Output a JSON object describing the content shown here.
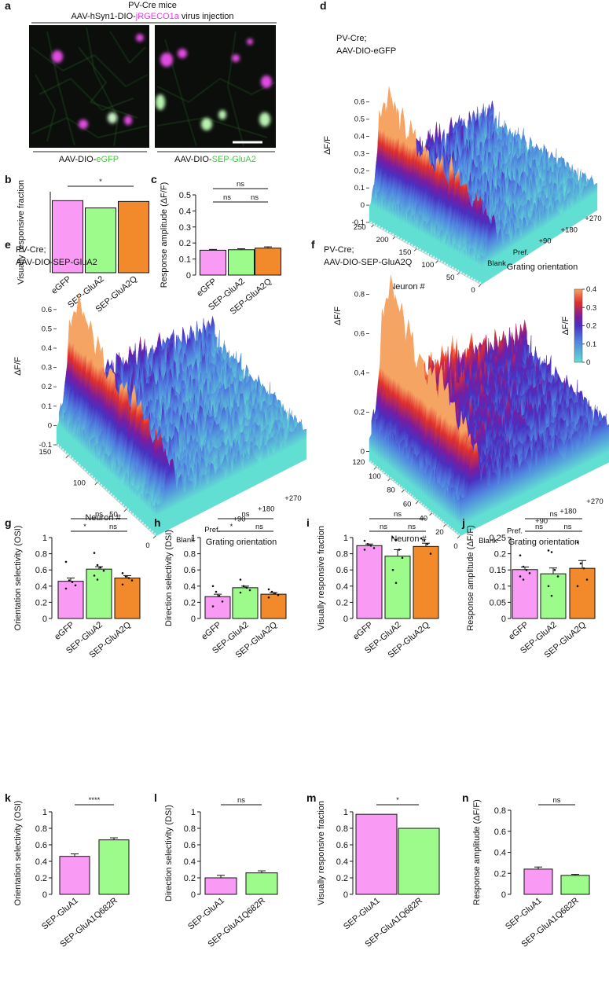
{
  "panel_a": {
    "letter": "a",
    "title": "PV-Cre mice",
    "subtitle": [
      "AAV-hSyn1-DIO-",
      "jRGECO1a",
      " virus injection"
    ],
    "left_label": [
      "AAV-DIO-",
      "eGFP"
    ],
    "right_label": [
      "AAV-DIO-",
      "SEP-GluA2"
    ]
  },
  "chart_data": [
    {
      "type": "bar",
      "panel": "b",
      "ylabel": "Visually responsive fraction",
      "categories": [
        "eGFP",
        "SEP-GluA2",
        "SEP-GluA2Q"
      ],
      "values": [
        0.89,
        0.8,
        0.88
      ],
      "colors": [
        "#f99bf5",
        "#9dfb8c",
        "#f28a2b"
      ],
      "ylim": [
        0,
        1
      ],
      "comparisons": [
        {
          "groups": [
            0,
            2
          ],
          "label": "*"
        }
      ]
    },
    {
      "type": "bar",
      "panel": "c",
      "ylabel": "Response amplitude (ΔF/F)",
      "categories": [
        "eGFP",
        "SEP-GluA2",
        "SEP-GluA2Q"
      ],
      "values": [
        0.155,
        0.158,
        0.168
      ],
      "errors": [
        0.005,
        0.006,
        0.008
      ],
      "colors": [
        "#f99bf5",
        "#9dfb8c",
        "#f28a2b"
      ],
      "ylim": [
        0,
        0.5
      ],
      "yticks": [
        0,
        0.1,
        0.2,
        0.3,
        0.4,
        0.5
      ],
      "comparisons": [
        {
          "groups": [
            0,
            2
          ],
          "label": "ns"
        },
        {
          "groups": [
            0,
            1
          ],
          "label": "ns"
        },
        {
          "groups": [
            1,
            2
          ],
          "label": "ns"
        }
      ]
    },
    {
      "type": "surface3d",
      "panel": "d",
      "title_lines": [
        "PV-Cre;",
        "AAV-DIO-eGFP"
      ],
      "zlabel": "ΔF/F",
      "zlim": [
        -0.1,
        0.6
      ],
      "zticks": [
        -0.1,
        0,
        0.1,
        0.2,
        0.3,
        0.4,
        0.5,
        0.6
      ],
      "ylabel": "Neuron #",
      "ylim": [
        0,
        260
      ],
      "yticks": [
        0,
        50,
        100,
        150,
        200,
        250
      ],
      "xlabel": "Grating orientation",
      "categories": [
        "Blank",
        "Pref.",
        "+90",
        "+180",
        "+270"
      ]
    },
    {
      "type": "surface3d",
      "panel": "e",
      "title_lines": [
        "PV-Cre;",
        "AAV-DIO-SEP-GluA2"
      ],
      "zlabel": "ΔF/F",
      "zlim": [
        -0.1,
        0.6
      ],
      "zticks": [
        -0.1,
        0,
        0.1,
        0.2,
        0.3,
        0.4,
        0.5,
        0.6
      ],
      "ylabel": "Neuron #",
      "ylim": [
        0,
        170
      ],
      "yticks": [
        0,
        50,
        100,
        150
      ],
      "xlabel": "Grating orientation",
      "categories": [
        "Blank",
        "Pref.",
        "+90",
        "+180",
        "+270"
      ]
    },
    {
      "type": "surface3d",
      "panel": "f",
      "title_lines": [
        "PV-Cre;",
        "AAV-DIO-SEP-GluA2Q"
      ],
      "zlabel": "ΔF/F",
      "zlim": [
        -0.05,
        0.8
      ],
      "zticks": [
        0,
        0.2,
        0.4,
        0.6,
        0.8
      ],
      "ylabel": "Neuron #",
      "ylim": [
        0,
        130
      ],
      "yticks": [
        0,
        20,
        40,
        60,
        80,
        100,
        120
      ],
      "xlabel": "Grating orientation",
      "categories": [
        "Blank",
        "Pref.",
        "+90",
        "+180",
        "+270"
      ],
      "colorbar": {
        "label": "ΔF/F",
        "lim": [
          0,
          0.4
        ],
        "ticks": [
          0,
          0.1,
          0.2,
          0.3,
          0.4
        ]
      }
    },
    {
      "type": "bar",
      "panel": "g",
      "ylabel": "Orientation selectivity (OSI)",
      "categories": [
        "eGFP",
        "SEP-GluA2",
        "SEP-GluA2Q"
      ],
      "values": [
        0.46,
        0.61,
        0.5
      ],
      "errors": [
        0.04,
        0.03,
        0.03
      ],
      "points": [
        [
          0.7,
          0.47,
          0.45,
          0.41,
          0.37
        ],
        [
          0.81,
          0.66,
          0.63,
          0.59,
          0.53,
          0.48
        ],
        [
          0.56,
          0.52,
          0.5,
          0.47,
          0.42
        ]
      ],
      "colors": [
        "#f99bf5",
        "#9dfb8c",
        "#f28a2b"
      ],
      "ylim": [
        0,
        1
      ],
      "yticks": [
        0,
        0.2,
        0.4,
        0.6,
        0.8,
        1
      ],
      "comparisons": [
        {
          "groups": [
            0,
            2
          ],
          "label": "ns"
        },
        {
          "groups": [
            0,
            1
          ],
          "label": "*"
        },
        {
          "groups": [
            1,
            2
          ],
          "label": "ns"
        }
      ]
    },
    {
      "type": "bar",
      "panel": "h",
      "ylabel": "Direction selectivity (DSI)",
      "categories": [
        "eGFP",
        "SEP-GluA2",
        "SEP-GluA2Q"
      ],
      "values": [
        0.27,
        0.38,
        0.3
      ],
      "errors": [
        0.03,
        0.02,
        0.02
      ],
      "points": [
        [
          0.4,
          0.33,
          0.28,
          0.21,
          0.15
        ],
        [
          0.48,
          0.4,
          0.38,
          0.35,
          0.32
        ],
        [
          0.36,
          0.33,
          0.31,
          0.29,
          0.26
        ]
      ],
      "colors": [
        "#f99bf5",
        "#9dfb8c",
        "#f28a2b"
      ],
      "ylim": [
        0,
        1
      ],
      "yticks": [
        0,
        0.2,
        0.4,
        0.6,
        0.8,
        1
      ],
      "comparisons": [
        {
          "groups": [
            0,
            2
          ],
          "label": "ns"
        },
        {
          "groups": [
            0,
            1
          ],
          "label": "*"
        },
        {
          "groups": [
            1,
            2
          ],
          "label": "ns"
        }
      ]
    },
    {
      "type": "bar",
      "panel": "i",
      "ylabel": "Visually responsive fraction",
      "categories": [
        "eGFP",
        "SEP-GluA2",
        "SEP-GluA2Q"
      ],
      "values": [
        0.9,
        0.77,
        0.89
      ],
      "errors": [
        0.02,
        0.08,
        0.04
      ],
      "points": [
        [
          0.96,
          0.92,
          0.9,
          0.87,
          0.85
        ],
        [
          1.0,
          0.97,
          0.85,
          0.75,
          0.6,
          0.44
        ],
        [
          0.99,
          0.96,
          0.92,
          0.8
        ]
      ],
      "colors": [
        "#f99bf5",
        "#9dfb8c",
        "#f28a2b"
      ],
      "ylim": [
        0,
        1
      ],
      "yticks": [
        0,
        0.2,
        0.4,
        0.6,
        0.8,
        1
      ],
      "comparisons": [
        {
          "groups": [
            0,
            2
          ],
          "label": "ns"
        },
        {
          "groups": [
            0,
            1
          ],
          "label": "ns"
        },
        {
          "groups": [
            1,
            2
          ],
          "label": "ns"
        }
      ]
    },
    {
      "type": "bar",
      "panel": "j",
      "ylabel": "Response amplitude (ΔF/F)",
      "categories": [
        "eGFP",
        "SEP-GluA2",
        "SEP-GluA2Q"
      ],
      "values": [
        0.151,
        0.138,
        0.155
      ],
      "errors": [
        0.008,
        0.018,
        0.024
      ],
      "points": [
        [
          0.195,
          0.16,
          0.15,
          0.14,
          0.13,
          0.12
        ],
        [
          0.21,
          0.205,
          0.15,
          0.13,
          0.1,
          0.07
        ],
        [
          0.235,
          0.17,
          0.155,
          0.12,
          0.1
        ]
      ],
      "colors": [
        "#f99bf5",
        "#9dfb8c",
        "#f28a2b"
      ],
      "ylim": [
        0,
        0.25
      ],
      "yticks": [
        0,
        0.05,
        0.1,
        0.15,
        0.2,
        0.25
      ],
      "comparisons": [
        {
          "groups": [
            0,
            2
          ],
          "label": "ns"
        },
        {
          "groups": [
            0,
            1
          ],
          "label": "ns"
        },
        {
          "groups": [
            1,
            2
          ],
          "label": "ns"
        }
      ]
    },
    {
      "type": "bar",
      "panel": "k",
      "ylabel": "Orientation selectivity (OSI)",
      "categories": [
        "SEP-GluA1",
        "SEP-GluA1Q682R"
      ],
      "values": [
        0.46,
        0.66
      ],
      "errors": [
        0.03,
        0.025
      ],
      "colors": [
        "#f99bf5",
        "#9dfb8c"
      ],
      "ylim": [
        0,
        1
      ],
      "yticks": [
        0,
        0.2,
        0.4,
        0.6,
        0.8,
        1
      ],
      "comparisons": [
        {
          "groups": [
            0,
            1
          ],
          "label": "****"
        }
      ]
    },
    {
      "type": "bar",
      "panel": "l",
      "ylabel": "Direction selectivity (DSI)",
      "categories": [
        "SEP-GluA1",
        "SEP-GluA1Q682R"
      ],
      "values": [
        0.2,
        0.26
      ],
      "errors": [
        0.03,
        0.025
      ],
      "colors": [
        "#f99bf5",
        "#9dfb8c"
      ],
      "ylim": [
        0,
        1
      ],
      "yticks": [
        0,
        0.2,
        0.4,
        0.6,
        0.8,
        1
      ],
      "comparisons": [
        {
          "groups": [
            0,
            1
          ],
          "label": "ns"
        }
      ]
    },
    {
      "type": "bar",
      "panel": "m",
      "ylabel": "Visually responsive fraction",
      "categories": [
        "SEP-GluA1",
        "SEP-GluA1Q682R"
      ],
      "values": [
        0.97,
        0.8
      ],
      "colors": [
        "#f99bf5",
        "#9dfb8c"
      ],
      "ylim": [
        0,
        1
      ],
      "yticks": [
        0,
        0.2,
        0.4,
        0.6,
        0.8,
        1
      ],
      "comparisons": [
        {
          "groups": [
            0,
            1
          ],
          "label": "*"
        }
      ]
    },
    {
      "type": "bar",
      "panel": "n",
      "ylabel": "Response amplitude (ΔF/F)",
      "categories": [
        "SEP-GluA1",
        "SEP-GluA1Q682R"
      ],
      "values": [
        0.24,
        0.18
      ],
      "errors": [
        0.02,
        0.01
      ],
      "colors": [
        "#f99bf5",
        "#9dfb8c"
      ],
      "ylim": [
        0,
        0.8
      ],
      "yticks": [
        0,
        0.2,
        0.4,
        0.6,
        0.8
      ],
      "comparisons": [
        {
          "groups": [
            0,
            1
          ],
          "label": "ns"
        }
      ]
    }
  ]
}
